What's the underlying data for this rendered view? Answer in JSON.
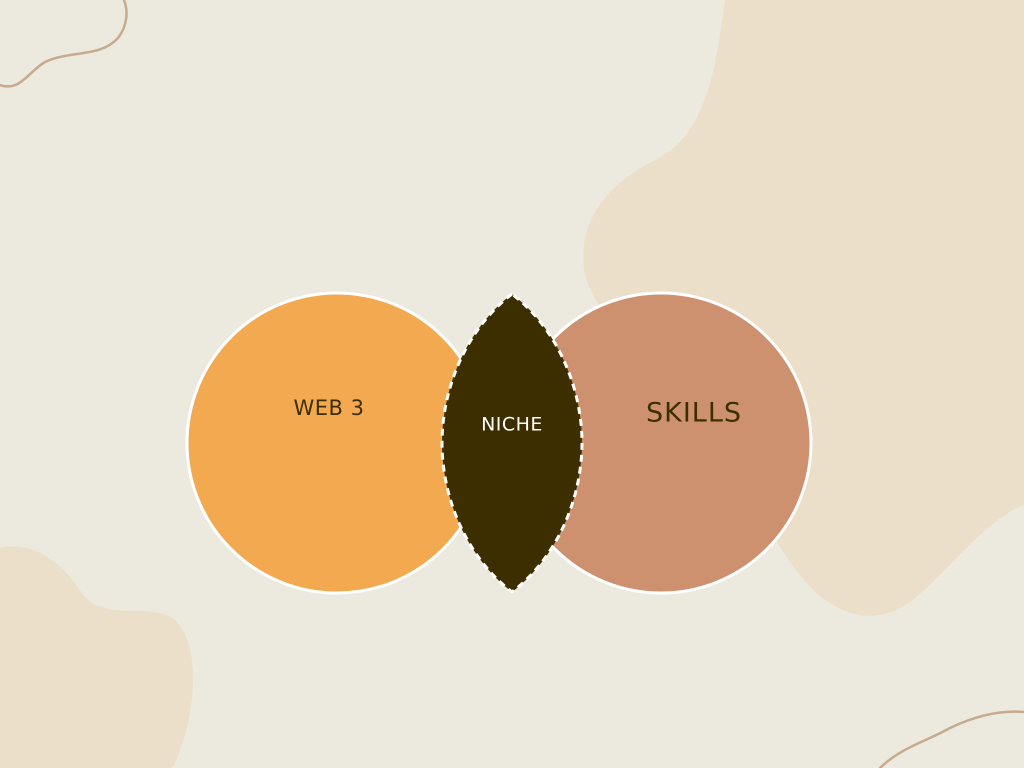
{
  "diagram": {
    "left_circle": {
      "label": "WEB 3",
      "fill": "#F2A950"
    },
    "right_circle": {
      "label": "SKILLS",
      "fill": "#CD9170"
    },
    "intersection": {
      "label": "NICHE",
      "fill": "#3D2E00"
    }
  },
  "colors": {
    "background": "#ECEADF",
    "blob": "#ECDFCA",
    "outline": "#FFFFFF",
    "dark_text": "#3D2E00",
    "light_text": "#FFFFFF",
    "line_accent": "#C8AA8C"
  }
}
